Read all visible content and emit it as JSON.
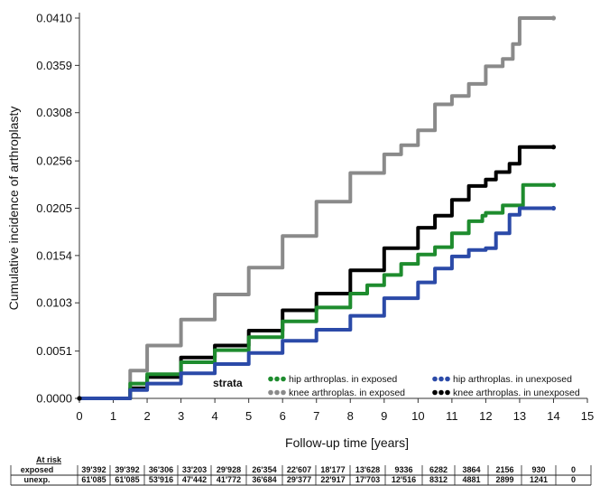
{
  "chart_data": {
    "type": "line",
    "title": "",
    "xlabel": "Follow-up time [years]",
    "ylabel": "Cumulative incidence of arthroplasty",
    "xlim": [
      0,
      15
    ],
    "ylim": [
      0.0,
      0.041
    ],
    "x_ticks": [
      "0",
      "1",
      "2",
      "3",
      "4",
      "5",
      "6",
      "7",
      "8",
      "9",
      "10",
      "11",
      "12",
      "13",
      "14",
      "15"
    ],
    "y_ticks": [
      "0.0000",
      "0.0051",
      "0.0103",
      "0.0154",
      "0.0205",
      "0.0256",
      "0.0308",
      "0.0359",
      "0.0410"
    ],
    "grid": false,
    "legend": {
      "title": "strata",
      "placement": "bottom-right"
    },
    "series": [
      {
        "name": "hip arthroplas. in exposed",
        "color": "#1e8c2e",
        "x": [
          0,
          1,
          1.5,
          2,
          3,
          4,
          5,
          6,
          7,
          8,
          8.5,
          9,
          9.5,
          10,
          10.5,
          11,
          11.5,
          11.9,
          12.0,
          12.3,
          12.5,
          13.0,
          13.1,
          14.0
        ],
        "y": [
          0,
          0,
          0.0016,
          0.0026,
          0.0039,
          0.0052,
          0.0066,
          0.0083,
          0.0098,
          0.0113,
          0.0122,
          0.0133,
          0.0145,
          0.0155,
          0.0163,
          0.0178,
          0.0191,
          0.0197,
          0.02,
          0.02,
          0.0208,
          0.0208,
          0.023,
          0.023
        ]
      },
      {
        "name": "hip arthroplas. in unexposed",
        "color": "#2b4aa8",
        "x": [
          0,
          1,
          1.5,
          2,
          3,
          4,
          5,
          6,
          7,
          8,
          9,
          10,
          10.5,
          11,
          11.5,
          12.0,
          12.3,
          12.7,
          13.0,
          14.0
        ],
        "y": [
          0,
          0,
          0.0009,
          0.0016,
          0.0027,
          0.0037,
          0.0049,
          0.0062,
          0.0074,
          0.0089,
          0.0108,
          0.0125,
          0.014,
          0.0153,
          0.016,
          0.0162,
          0.0178,
          0.0198,
          0.0205,
          0.0205
        ]
      },
      {
        "name": "knee arthroplas. in exposed",
        "color": "#8a8a8a",
        "x": [
          0,
          1,
          1.5,
          2,
          3,
          4,
          5,
          6,
          7,
          8,
          9,
          9.5,
          10,
          10.5,
          11,
          11.5,
          12,
          12.5,
          12.8,
          13.0,
          14.0
        ],
        "y": [
          0,
          0,
          0.003,
          0.0057,
          0.0085,
          0.0112,
          0.0141,
          0.0175,
          0.0212,
          0.0243,
          0.0263,
          0.0273,
          0.0289,
          0.0317,
          0.0326,
          0.0339,
          0.0358,
          0.0366,
          0.0382,
          0.041,
          0.041
        ]
      },
      {
        "name": "knee arthroplas. in unexposed",
        "color": "#000000",
        "x": [
          0,
          1,
          1.5,
          2,
          3,
          4,
          5,
          6,
          7,
          8,
          9,
          10,
          10.5,
          11,
          11.5,
          12.0,
          12.3,
          12.7,
          13.0,
          14.0
        ],
        "y": [
          0,
          0,
          0.0011,
          0.0023,
          0.0044,
          0.0057,
          0.0073,
          0.0095,
          0.0113,
          0.0138,
          0.0162,
          0.0184,
          0.0197,
          0.0214,
          0.0229,
          0.0236,
          0.0244,
          0.0253,
          0.0271,
          0.0271
        ]
      }
    ]
  },
  "at_risk": {
    "header": "At risk",
    "rows": [
      {
        "label": "exposed",
        "values": [
          "39'392",
          "39'392",
          "36'306",
          "33'203",
          "29'928",
          "26'354",
          "22'607",
          "18'177",
          "13'628",
          "9336",
          "6282",
          "3864",
          "2156",
          "930",
          "0"
        ]
      },
      {
        "label": "unexp.",
        "values": [
          "61'085",
          "61'085",
          "53'916",
          "47'442",
          "41'772",
          "36'684",
          "29'377",
          "22'917",
          "17'703",
          "12'516",
          "8312",
          "4881",
          "2899",
          "1241",
          "0"
        ]
      }
    ]
  }
}
